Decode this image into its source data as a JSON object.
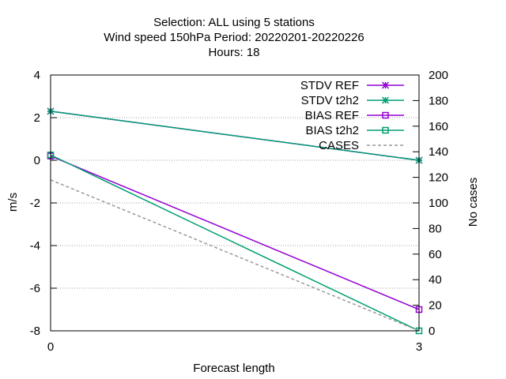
{
  "chart_data": {
    "type": "line",
    "title_lines": [
      "Selection: ALL using     5 stations",
      "Wind speed 150hPa   Period: 20220201-20220226",
      "Hours:  18"
    ],
    "xlabel": "Forecast length",
    "ylabel": "m/s",
    "y2label": "No cases",
    "x": [
      0,
      3
    ],
    "xlim": [
      0,
      3
    ],
    "ylim": [
      -8,
      4
    ],
    "y2lim": [
      0,
      200
    ],
    "xticks": [
      "0",
      "3"
    ],
    "yticks": [
      "4",
      "2",
      "0",
      "-2",
      "-4",
      "-6",
      "-8"
    ],
    "y2ticks": [
      "200",
      "180",
      "160",
      "140",
      "120",
      "100",
      "80",
      "60",
      "40",
      "20",
      "0"
    ],
    "grid": true,
    "legend_position": "top-right",
    "series": [
      {
        "name": "STDV REF",
        "axis": "y",
        "values": [
          2.3,
          0.0
        ],
        "color": "#9400d3",
        "marker": "x-star",
        "dash": false
      },
      {
        "name": "STDV t2h2",
        "axis": "y",
        "values": [
          2.3,
          0.0
        ],
        "color": "#009e73",
        "marker": "x-star",
        "dash": false
      },
      {
        "name": "BIAS REF",
        "axis": "y",
        "values": [
          0.2,
          -7.0
        ],
        "color": "#9400d3",
        "marker": "square",
        "dash": false
      },
      {
        "name": "BIAS t2h2",
        "axis": "y",
        "values": [
          0.25,
          -8.0
        ],
        "color": "#009e73",
        "marker": "square",
        "dash": false
      },
      {
        "name": "CASES",
        "axis": "y2",
        "values": [
          118,
          0
        ],
        "color": "#999999",
        "marker": "none",
        "dash": true
      }
    ]
  }
}
